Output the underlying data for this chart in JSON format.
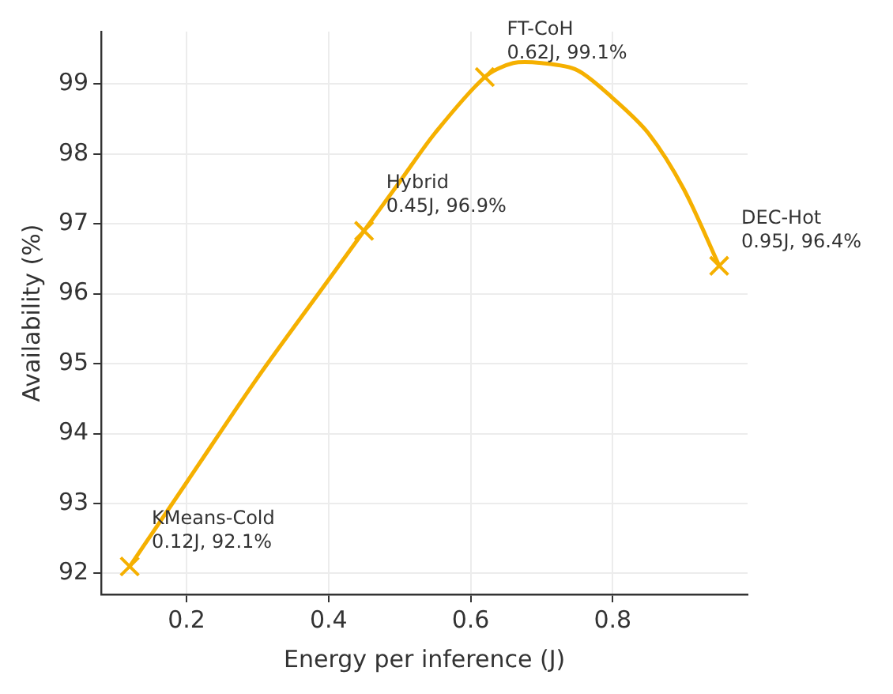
{
  "chart_data": {
    "type": "line",
    "xlabel": "Energy per inference (J)",
    "ylabel": "Availability (%)",
    "xlim": [
      0.08,
      0.99
    ],
    "xticks": [
      0.2,
      0.4,
      0.6,
      0.8
    ],
    "ylim": [
      91.7,
      99.75
    ],
    "yticks": [
      92,
      93,
      94,
      95,
      96,
      97,
      98,
      99
    ],
    "grid": true,
    "legend": false,
    "series": [
      {
        "type": "line",
        "color": "#f5b000",
        "marker": "none",
        "line_style": "solid",
        "x": [
          0.12,
          0.2,
          0.3,
          0.4,
          0.45,
          0.5,
          0.55,
          0.62,
          0.66,
          0.7,
          0.75,
          0.8,
          0.85,
          0.9,
          0.95
        ],
        "values": [
          92.1,
          93.3,
          94.8,
          96.2,
          96.9,
          97.6,
          98.3,
          99.1,
          99.3,
          99.3,
          99.2,
          98.8,
          98.3,
          97.5,
          96.4
        ]
      },
      {
        "type": "scatter",
        "color": "#f5b000",
        "marker": "cross",
        "x": [
          0.12,
          0.45,
          0.62,
          0.95
        ],
        "values": [
          92.1,
          96.9,
          99.1,
          96.4
        ]
      }
    ],
    "annotations": [
      {
        "text": "KMeans-Cold\n0.12J, 92.1%",
        "x": 0.12,
        "y": 92.1
      },
      {
        "text": "Hybrid\n0.45J, 96.9%",
        "x": 0.45,
        "y": 96.9
      },
      {
        "text": "FT-CoH\n0.62J, 99.1%",
        "x": 0.62,
        "y": 99.1
      },
      {
        "text": "DEC-Hot\n0.95J, 96.4%",
        "x": 0.95,
        "y": 96.4
      }
    ]
  }
}
